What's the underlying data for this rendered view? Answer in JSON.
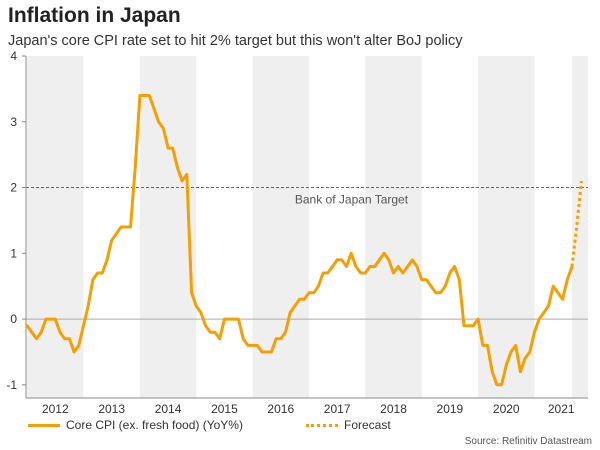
{
  "title": "Inflation in Japan",
  "subtitle": "Japan's core CPI rate set to hit 2% target but this won't alter BoJ policy",
  "source": "Source: Refinitiv Datastream",
  "colors": {
    "line": "#f5a000",
    "band": "#efefef",
    "target": "#666666",
    "zero": "#aaaaaa"
  },
  "chart_data": {
    "type": "line",
    "title": "Inflation in Japan",
    "ylim": [
      -1.2,
      4
    ],
    "yticks": [
      -1,
      0,
      1,
      2,
      3,
      4
    ],
    "xlim": [
      2011.98,
      2021.95
    ],
    "xticks": [
      "2012",
      "2013",
      "2014",
      "2015",
      "2016",
      "2017",
      "2018",
      "2019",
      "2020",
      "2021"
    ],
    "shaded_years": [
      "2012",
      "2014",
      "2016",
      "2018",
      "2020"
    ],
    "target": {
      "value": 2,
      "label": "Bank of Japan Target"
    },
    "series": [
      {
        "name": "Core CPI (ex. fresh food) (YoY%)",
        "style": "solid",
        "x": [
          2012.0,
          2012.083,
          2012.167,
          2012.25,
          2012.333,
          2012.417,
          2012.5,
          2012.583,
          2012.667,
          2012.75,
          2012.833,
          2012.917,
          2013.0,
          2013.083,
          2013.167,
          2013.25,
          2013.333,
          2013.417,
          2013.5,
          2013.583,
          2013.667,
          2013.75,
          2013.833,
          2013.917,
          2014.0,
          2014.083,
          2014.167,
          2014.25,
          2014.333,
          2014.417,
          2014.5,
          2014.583,
          2014.667,
          2014.75,
          2014.833,
          2014.917,
          2015.0,
          2015.083,
          2015.167,
          2015.25,
          2015.333,
          2015.417,
          2015.5,
          2015.583,
          2015.667,
          2015.75,
          2015.833,
          2015.917,
          2016.0,
          2016.083,
          2016.167,
          2016.25,
          2016.333,
          2016.417,
          2016.5,
          2016.583,
          2016.667,
          2016.75,
          2016.833,
          2016.917,
          2017.0,
          2017.083,
          2017.167,
          2017.25,
          2017.333,
          2017.417,
          2017.5,
          2017.583,
          2017.667,
          2017.75,
          2017.833,
          2017.917,
          2018.0,
          2018.083,
          2018.167,
          2018.25,
          2018.333,
          2018.417,
          2018.5,
          2018.583,
          2018.667,
          2018.75,
          2018.833,
          2018.917,
          2019.0,
          2019.083,
          2019.167,
          2019.25,
          2019.333,
          2019.417,
          2019.5,
          2019.583,
          2019.667,
          2019.75,
          2019.833,
          2019.917,
          2020.0,
          2020.083,
          2020.167,
          2020.25,
          2020.333,
          2020.417,
          2020.5,
          2020.583,
          2020.667,
          2020.75,
          2020.833,
          2020.917,
          2021.0,
          2021.083,
          2021.167,
          2021.25,
          2021.333,
          2021.417,
          2021.5,
          2021.583,
          2021.667
        ],
        "values": [
          -0.1,
          -0.2,
          -0.3,
          -0.2,
          0.0,
          0.0,
          0.0,
          -0.2,
          -0.3,
          -0.3,
          -0.5,
          -0.4,
          -0.1,
          0.2,
          0.6,
          0.7,
          0.7,
          0.9,
          1.2,
          1.3,
          1.4,
          1.4,
          1.4,
          2.3,
          3.4,
          3.4,
          3.4,
          3.2,
          3.0,
          2.9,
          2.6,
          2.6,
          2.3,
          2.1,
          2.2,
          0.4,
          0.2,
          0.1,
          -0.1,
          -0.2,
          -0.2,
          -0.3,
          0.0,
          0.0,
          0.0,
          0.0,
          -0.3,
          -0.4,
          -0.4,
          -0.4,
          -0.5,
          -0.5,
          -0.5,
          -0.3,
          -0.3,
          -0.2,
          0.1,
          0.2,
          0.3,
          0.3,
          0.4,
          0.4,
          0.5,
          0.7,
          0.7,
          0.8,
          0.9,
          0.9,
          0.8,
          1.0,
          0.8,
          0.7,
          0.7,
          0.8,
          0.8,
          0.9,
          1.0,
          0.9,
          0.7,
          0.8,
          0.7,
          0.8,
          0.9,
          0.8,
          0.6,
          0.6,
          0.5,
          0.4,
          0.4,
          0.5,
          0.7,
          0.8,
          0.6,
          -0.1,
          -0.1,
          -0.1,
          0.0,
          -0.4,
          -0.4,
          -0.8,
          -1.0,
          -1.0,
          -0.7,
          -0.5,
          -0.4,
          -0.8,
          -0.6,
          -0.5,
          -0.2,
          0.0,
          0.1,
          0.2,
          0.5,
          0.4,
          0.3,
          0.6,
          0.8
        ]
      },
      {
        "name": "Forecast",
        "style": "dotted",
        "x": [
          2021.667,
          2021.75,
          2021.833
        ],
        "values": [
          0.8,
          1.4,
          2.1
        ]
      }
    ]
  }
}
